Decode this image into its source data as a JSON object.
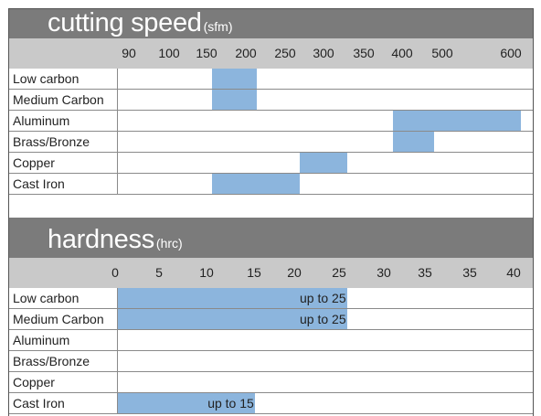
{
  "chart_data": [
    {
      "type": "range-bar",
      "title": "cutting speed",
      "unit": "(sfm)",
      "ticks": [
        "90",
        "100",
        "150",
        "200",
        "250",
        "300",
        "350",
        "400",
        "500",
        "600"
      ],
      "rows": [
        {
          "label": "Low carbon",
          "range": [
            150,
            200
          ],
          "text": ""
        },
        {
          "label": "Medium Carbon",
          "range": [
            150,
            200
          ],
          "text": ""
        },
        {
          "label": "Aluminum",
          "range": [
            350,
            600
          ],
          "text": ""
        },
        {
          "label": "Brass/Bronze",
          "range": [
            350,
            400
          ],
          "text": ""
        },
        {
          "label": "Copper",
          "range": [
            250,
            300
          ],
          "text": ""
        },
        {
          "label": "Cast Iron",
          "range": [
            150,
            250
          ],
          "text": ""
        }
      ],
      "bar_color": "#8cb5dd"
    },
    {
      "type": "range-bar",
      "title": "hardness",
      "unit": "(hrc)",
      "ticks": [
        "0",
        "5",
        "10",
        "15",
        "20",
        "25",
        "30",
        "35",
        "35",
        "40"
      ],
      "rows": [
        {
          "label": "Low carbon",
          "range": [
            0,
            25
          ],
          "text": "up to 25"
        },
        {
          "label": "Medium Carbon",
          "range": [
            0,
            25
          ],
          "text": "up to 25"
        },
        {
          "label": "Aluminum",
          "range": null,
          "text": ""
        },
        {
          "label": "Brass/Bronze",
          "range": null,
          "text": ""
        },
        {
          "label": "Copper",
          "range": null,
          "text": ""
        },
        {
          "label": "Cast Iron",
          "range": [
            0,
            15
          ],
          "text": "up to 15"
        }
      ],
      "bar_color": "#8cb5dd"
    }
  ]
}
